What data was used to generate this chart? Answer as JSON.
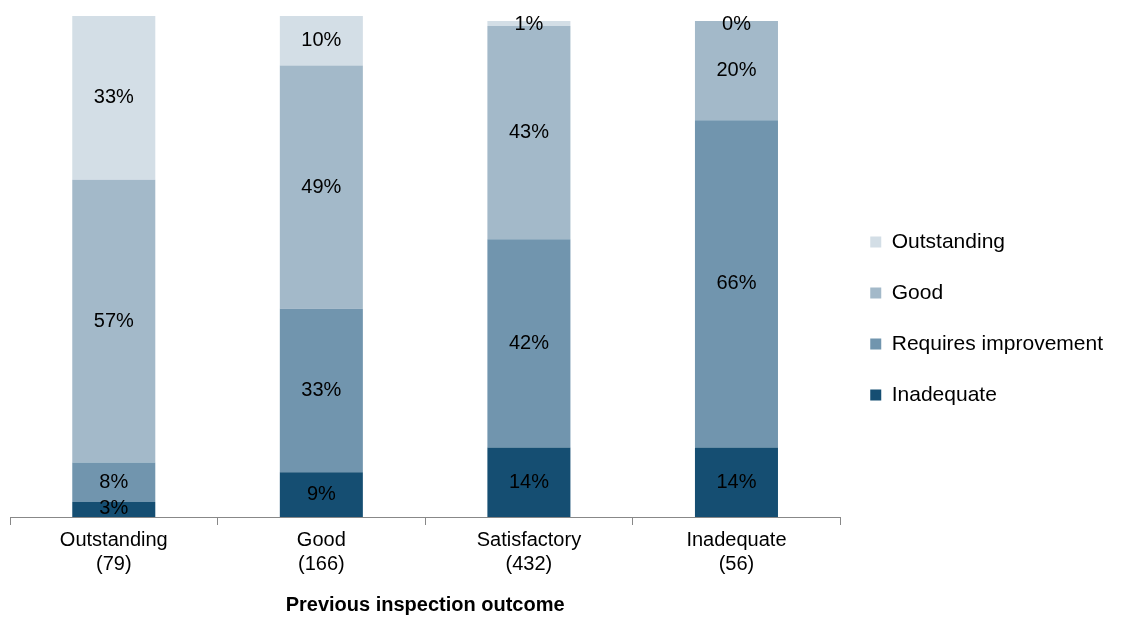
{
  "chart_data": {
    "type": "bar",
    "stacked": true,
    "xlabel": "Previous inspection outcome",
    "categories": [
      "Outstanding\n(79)",
      "Good\n(166)",
      "Satisfactory\n(432)",
      "Inadequate\n(56)"
    ],
    "series": [
      {
        "name": "Inadequate",
        "color": "#154e72",
        "values": [
          3,
          9,
          14,
          14
        ],
        "value_labels": [
          "3%",
          "9%",
          "14%",
          "14%"
        ]
      },
      {
        "name": "Requires improvement",
        "color": "#7195ae",
        "values": [
          8,
          33,
          42,
          66
        ],
        "value_labels": [
          "8%",
          "33%",
          "42%",
          "66%"
        ]
      },
      {
        "name": "Good",
        "color": "#a3b9c9",
        "values": [
          57,
          49,
          43,
          20
        ],
        "value_labels": [
          "57%",
          "49%",
          "43%",
          "20%"
        ]
      },
      {
        "name": "Outstanding",
        "color": "#d3dee6",
        "values": [
          33,
          10,
          1,
          0
        ],
        "value_labels": [
          "33%",
          "10%",
          "1%",
          "0%"
        ]
      }
    ],
    "legend": "right",
    "grid": false
  }
}
